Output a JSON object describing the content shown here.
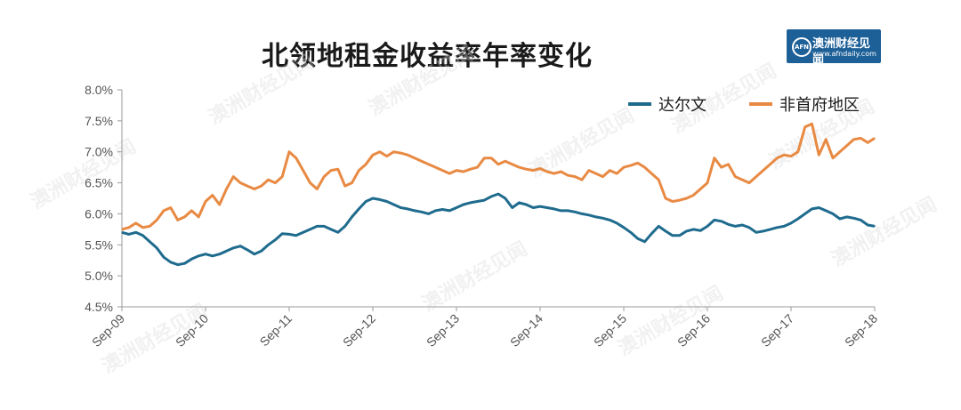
{
  "page": {
    "title": "北领地租金收益率年率变化"
  },
  "logo": {
    "name": "澳洲财经见闻",
    "url": "www.afndaily.com",
    "mark": "AFN"
  },
  "watermark": "澳洲财经见闻",
  "colors": {
    "darwin": "#1f6b8e",
    "non_capital": "#e88a43",
    "axis": "#9a9a9a",
    "logo_bg": "#1d5f97"
  },
  "chart_data": {
    "type": "line",
    "title": "北领地租金收益率年率变化",
    "xlabel": "",
    "ylabel": "",
    "ylim": [
      0.045,
      0.08
    ],
    "y_ticks": [
      "4.5%",
      "5.0%",
      "5.5%",
      "6.0%",
      "6.5%",
      "7.0%",
      "7.5%",
      "8.0%"
    ],
    "x_range": [
      "2009-09",
      "2018-09"
    ],
    "x_ticks": [
      "Sep-09",
      "Sep-10",
      "Sep-11",
      "Sep-12",
      "Sep-13",
      "Sep-14",
      "Sep-15",
      "Sep-16",
      "Sep-17",
      "Sep-18"
    ],
    "grid": false,
    "legend": "top-right",
    "series": [
      {
        "name": "达尔文",
        "color": "#1f6b8e",
        "points": [
          [
            "2009-09",
            0.057
          ],
          [
            "2009-10",
            0.0567
          ],
          [
            "2009-11",
            0.057
          ],
          [
            "2009-12",
            0.0565
          ],
          [
            "2010-01",
            0.0555
          ],
          [
            "2010-02",
            0.0545
          ],
          [
            "2010-03",
            0.053
          ],
          [
            "2010-04",
            0.0522
          ],
          [
            "2010-05",
            0.0518
          ],
          [
            "2010-06",
            0.052
          ],
          [
            "2010-07",
            0.0527
          ],
          [
            "2010-08",
            0.0532
          ],
          [
            "2010-09",
            0.0535
          ],
          [
            "2010-10",
            0.0532
          ],
          [
            "2010-11",
            0.0535
          ],
          [
            "2010-12",
            0.054
          ],
          [
            "2011-01",
            0.0545
          ],
          [
            "2011-02",
            0.0548
          ],
          [
            "2011-03",
            0.0542
          ],
          [
            "2011-04",
            0.0535
          ],
          [
            "2011-05",
            0.054
          ],
          [
            "2011-06",
            0.055
          ],
          [
            "2011-07",
            0.0558
          ],
          [
            "2011-08",
            0.0568
          ],
          [
            "2011-09",
            0.0567
          ],
          [
            "2011-10",
            0.0565
          ],
          [
            "2011-11",
            0.057
          ],
          [
            "2011-12",
            0.0575
          ],
          [
            "2012-01",
            0.058
          ],
          [
            "2012-02",
            0.058
          ],
          [
            "2012-03",
            0.0575
          ],
          [
            "2012-04",
            0.057
          ],
          [
            "2012-05",
            0.058
          ],
          [
            "2012-06",
            0.0595
          ],
          [
            "2012-07",
            0.0608
          ],
          [
            "2012-08",
            0.062
          ],
          [
            "2012-09",
            0.0625
          ],
          [
            "2012-10",
            0.0623
          ],
          [
            "2012-11",
            0.062
          ],
          [
            "2012-12",
            0.0615
          ],
          [
            "2013-01",
            0.061
          ],
          [
            "2013-02",
            0.0608
          ],
          [
            "2013-03",
            0.0605
          ],
          [
            "2013-04",
            0.0603
          ],
          [
            "2013-05",
            0.06
          ],
          [
            "2013-06",
            0.0605
          ],
          [
            "2013-07",
            0.0607
          ],
          [
            "2013-08",
            0.0605
          ],
          [
            "2013-09",
            0.061
          ],
          [
            "2013-10",
            0.0615
          ],
          [
            "2013-11",
            0.0618
          ],
          [
            "2013-12",
            0.062
          ],
          [
            "2014-01",
            0.0622
          ],
          [
            "2014-02",
            0.0628
          ],
          [
            "2014-03",
            0.0632
          ],
          [
            "2014-04",
            0.0625
          ],
          [
            "2014-05",
            0.061
          ],
          [
            "2014-06",
            0.0618
          ],
          [
            "2014-07",
            0.0615
          ],
          [
            "2014-08",
            0.061
          ],
          [
            "2014-09",
            0.0612
          ],
          [
            "2014-10",
            0.061
          ],
          [
            "2014-11",
            0.0608
          ],
          [
            "2014-12",
            0.0605
          ],
          [
            "2015-01",
            0.0605
          ],
          [
            "2015-02",
            0.0603
          ],
          [
            "2015-03",
            0.06
          ],
          [
            "2015-04",
            0.0598
          ],
          [
            "2015-05",
            0.0595
          ],
          [
            "2015-06",
            0.0593
          ],
          [
            "2015-07",
            0.059
          ],
          [
            "2015-08",
            0.0585
          ],
          [
            "2015-09",
            0.0578
          ],
          [
            "2015-10",
            0.057
          ],
          [
            "2015-11",
            0.056
          ],
          [
            "2015-12",
            0.0555
          ],
          [
            "2016-01",
            0.0568
          ],
          [
            "2016-02",
            0.058
          ],
          [
            "2016-03",
            0.0572
          ],
          [
            "2016-04",
            0.0565
          ],
          [
            "2016-05",
            0.0565
          ],
          [
            "2016-06",
            0.0572
          ],
          [
            "2016-07",
            0.0575
          ],
          [
            "2016-08",
            0.0573
          ],
          [
            "2016-09",
            0.058
          ],
          [
            "2016-10",
            0.059
          ],
          [
            "2016-11",
            0.0588
          ],
          [
            "2016-12",
            0.0583
          ],
          [
            "2017-01",
            0.058
          ],
          [
            "2017-02",
            0.0582
          ],
          [
            "2017-03",
            0.0578
          ],
          [
            "2017-04",
            0.057
          ],
          [
            "2017-05",
            0.0572
          ],
          [
            "2017-06",
            0.0575
          ],
          [
            "2017-07",
            0.0578
          ],
          [
            "2017-08",
            0.058
          ],
          [
            "2017-09",
            0.0585
          ],
          [
            "2017-10",
            0.0592
          ],
          [
            "2017-11",
            0.06
          ],
          [
            "2017-12",
            0.0608
          ],
          [
            "2018-01",
            0.061
          ],
          [
            "2018-02",
            0.0605
          ],
          [
            "2018-03",
            0.06
          ],
          [
            "2018-04",
            0.0592
          ],
          [
            "2018-05",
            0.0595
          ],
          [
            "2018-06",
            0.0593
          ],
          [
            "2018-07",
            0.059
          ],
          [
            "2018-08",
            0.0582
          ],
          [
            "2018-09",
            0.058
          ]
        ]
      },
      {
        "name": "非首府地区",
        "color": "#e88a43",
        "points": [
          [
            "2009-09",
            0.0575
          ],
          [
            "2009-10",
            0.0578
          ],
          [
            "2009-11",
            0.0585
          ],
          [
            "2009-12",
            0.0578
          ],
          [
            "2010-01",
            0.058
          ],
          [
            "2010-02",
            0.059
          ],
          [
            "2010-03",
            0.0605
          ],
          [
            "2010-04",
            0.061
          ],
          [
            "2010-05",
            0.059
          ],
          [
            "2010-06",
            0.0595
          ],
          [
            "2010-07",
            0.0605
          ],
          [
            "2010-08",
            0.0595
          ],
          [
            "2010-09",
            0.062
          ],
          [
            "2010-10",
            0.063
          ],
          [
            "2010-11",
            0.0615
          ],
          [
            "2010-12",
            0.064
          ],
          [
            "2011-01",
            0.066
          ],
          [
            "2011-02",
            0.065
          ],
          [
            "2011-03",
            0.0645
          ],
          [
            "2011-04",
            0.064
          ],
          [
            "2011-05",
            0.0645
          ],
          [
            "2011-06",
            0.0655
          ],
          [
            "2011-07",
            0.065
          ],
          [
            "2011-08",
            0.066
          ],
          [
            "2011-09",
            0.07
          ],
          [
            "2011-10",
            0.069
          ],
          [
            "2011-11",
            0.067
          ],
          [
            "2011-12",
            0.065
          ],
          [
            "2012-01",
            0.064
          ],
          [
            "2012-02",
            0.066
          ],
          [
            "2012-03",
            0.067
          ],
          [
            "2012-04",
            0.0672
          ],
          [
            "2012-05",
            0.0645
          ],
          [
            "2012-06",
            0.065
          ],
          [
            "2012-07",
            0.067
          ],
          [
            "2012-08",
            0.068
          ],
          [
            "2012-09",
            0.0695
          ],
          [
            "2012-10",
            0.07
          ],
          [
            "2012-11",
            0.0693
          ],
          [
            "2012-12",
            0.07
          ],
          [
            "2013-01",
            0.0698
          ],
          [
            "2013-02",
            0.0695
          ],
          [
            "2013-03",
            0.069
          ],
          [
            "2013-04",
            0.0685
          ],
          [
            "2013-05",
            0.068
          ],
          [
            "2013-06",
            0.0675
          ],
          [
            "2013-07",
            0.067
          ],
          [
            "2013-08",
            0.0665
          ],
          [
            "2013-09",
            0.067
          ],
          [
            "2013-10",
            0.0668
          ],
          [
            "2013-11",
            0.0672
          ],
          [
            "2013-12",
            0.0675
          ],
          [
            "2014-01",
            0.069
          ],
          [
            "2014-02",
            0.069
          ],
          [
            "2014-03",
            0.068
          ],
          [
            "2014-04",
            0.0685
          ],
          [
            "2014-05",
            0.068
          ],
          [
            "2014-06",
            0.0675
          ],
          [
            "2014-07",
            0.0672
          ],
          [
            "2014-08",
            0.067
          ],
          [
            "2014-09",
            0.0673
          ],
          [
            "2014-10",
            0.0668
          ],
          [
            "2014-11",
            0.0665
          ],
          [
            "2014-12",
            0.0668
          ],
          [
            "2015-01",
            0.0662
          ],
          [
            "2015-02",
            0.066
          ],
          [
            "2015-03",
            0.0655
          ],
          [
            "2015-04",
            0.067
          ],
          [
            "2015-05",
            0.0665
          ],
          [
            "2015-06",
            0.066
          ],
          [
            "2015-07",
            0.067
          ],
          [
            "2015-08",
            0.0665
          ],
          [
            "2015-09",
            0.0675
          ],
          [
            "2015-10",
            0.0678
          ],
          [
            "2015-11",
            0.0682
          ],
          [
            "2015-12",
            0.0675
          ],
          [
            "2016-01",
            0.0665
          ],
          [
            "2016-02",
            0.0655
          ],
          [
            "2016-03",
            0.0625
          ],
          [
            "2016-04",
            0.062
          ],
          [
            "2016-05",
            0.0622
          ],
          [
            "2016-06",
            0.0625
          ],
          [
            "2016-07",
            0.063
          ],
          [
            "2016-08",
            0.064
          ],
          [
            "2016-09",
            0.065
          ],
          [
            "2016-10",
            0.069
          ],
          [
            "2016-11",
            0.0675
          ],
          [
            "2016-12",
            0.068
          ],
          [
            "2017-01",
            0.066
          ],
          [
            "2017-02",
            0.0655
          ],
          [
            "2017-03",
            0.065
          ],
          [
            "2017-04",
            0.066
          ],
          [
            "2017-05",
            0.067
          ],
          [
            "2017-06",
            0.068
          ],
          [
            "2017-07",
            0.069
          ],
          [
            "2017-08",
            0.0695
          ],
          [
            "2017-09",
            0.0693
          ],
          [
            "2017-10",
            0.07
          ],
          [
            "2017-11",
            0.074
          ],
          [
            "2017-12",
            0.0745
          ],
          [
            "2018-01",
            0.0695
          ],
          [
            "2018-02",
            0.072
          ],
          [
            "2018-03",
            0.069
          ],
          [
            "2018-04",
            0.07
          ],
          [
            "2018-05",
            0.071
          ],
          [
            "2018-06",
            0.072
          ],
          [
            "2018-07",
            0.0722
          ],
          [
            "2018-08",
            0.0715
          ],
          [
            "2018-09",
            0.0722
          ]
        ]
      }
    ]
  }
}
